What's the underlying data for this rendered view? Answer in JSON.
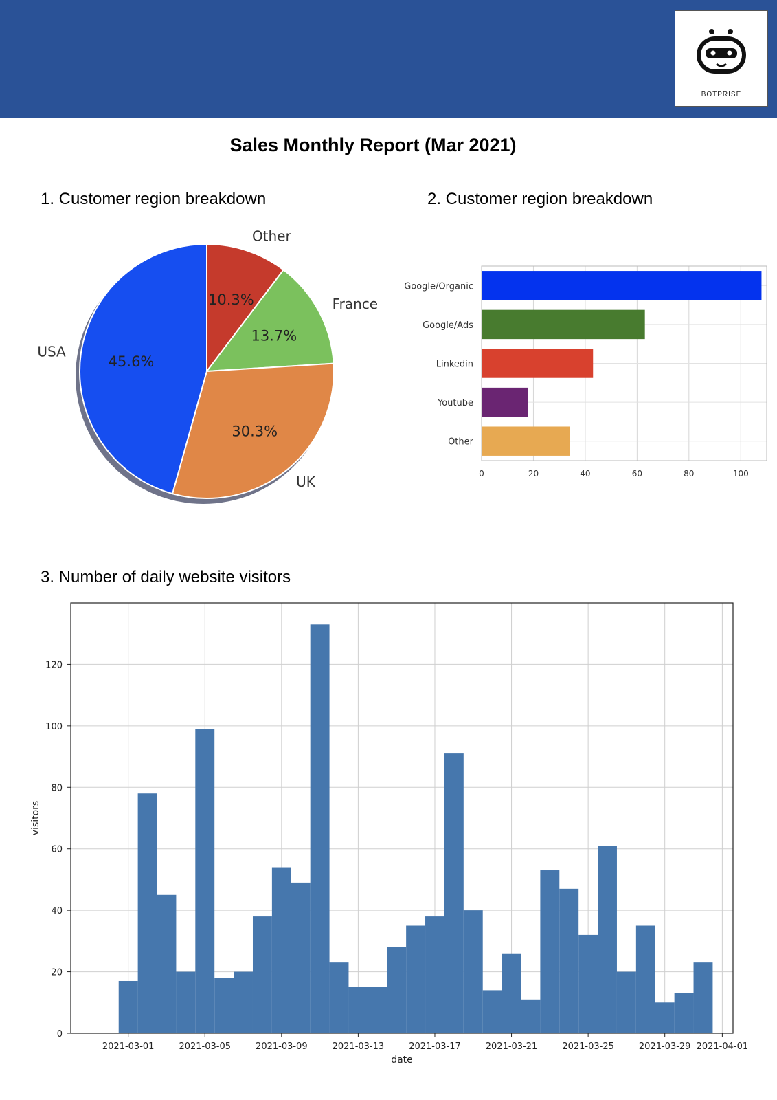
{
  "header": {
    "logo_text": "BOTPRISE",
    "brand_color": "#2a5297"
  },
  "report_title": "Sales Monthly Report (Mar 2021)",
  "sections": [
    {
      "title": "1. Customer region breakdown"
    },
    {
      "title": "2. Customer region breakdown"
    },
    {
      "title": "3. Number of daily website visitors"
    }
  ],
  "chart_data": [
    {
      "type": "pie",
      "labels": [
        "Other",
        "France",
        "UK",
        "USA"
      ],
      "values": [
        10.3,
        13.7,
        30.3,
        45.6
      ],
      "pct_labels": [
        "10.3%",
        "13.7%",
        "30.3%",
        "45.6%"
      ],
      "colors": [
        "#c53a2c",
        "#7bc15d",
        "#e08747",
        "#164ef0"
      ],
      "shadow": true
    },
    {
      "type": "bar",
      "orientation": "horizontal",
      "categories": [
        "Google/Organic",
        "Google/Ads",
        "Linkedin",
        "Youtube",
        "Other"
      ],
      "values": [
        108,
        63,
        43,
        18,
        34
      ],
      "colors": [
        "#0433ee",
        "#487b2f",
        "#d8412e",
        "#6a2572",
        "#e7a952"
      ],
      "xlim": [
        0,
        110
      ],
      "xticks": [
        0,
        20,
        40,
        60,
        80,
        100
      ],
      "grid": true
    },
    {
      "type": "bar",
      "xlabel": "date",
      "ylabel": "visitors",
      "color": "#4677ad",
      "x_tick_labels": [
        "2021-03-01",
        "2021-03-05",
        "2021-03-09",
        "2021-03-13",
        "2021-03-17",
        "2021-03-21",
        "2021-03-25",
        "2021-03-29",
        "2021-04-01"
      ],
      "ylim": [
        0,
        140
      ],
      "yticks": [
        0,
        20,
        40,
        60,
        80,
        100,
        120
      ],
      "grid": true,
      "series": [
        {
          "x": [
            "2021-02-28",
            "2021-03-01",
            "2021-03-02",
            "2021-03-03",
            "2021-03-04",
            "2021-03-05",
            "2021-03-06",
            "2021-03-07",
            "2021-03-08",
            "2021-03-09",
            "2021-03-10",
            "2021-03-11",
            "2021-03-12",
            "2021-03-13",
            "2021-03-14",
            "2021-03-15",
            "2021-03-16",
            "2021-03-17",
            "2021-03-18",
            "2021-03-19",
            "2021-03-20",
            "2021-03-21",
            "2021-03-22",
            "2021-03-23",
            "2021-03-24",
            "2021-03-25",
            "2021-03-26",
            "2021-03-27",
            "2021-03-28",
            "2021-03-29",
            "2021-03-30"
          ],
          "values": [
            17,
            78,
            45,
            20,
            99,
            18,
            20,
            38,
            54,
            49,
            133,
            23,
            15,
            15,
            28,
            35,
            38,
            91,
            40,
            14,
            26,
            11,
            53,
            47,
            32,
            61,
            20,
            35,
            10,
            13,
            23
          ]
        }
      ]
    }
  ]
}
